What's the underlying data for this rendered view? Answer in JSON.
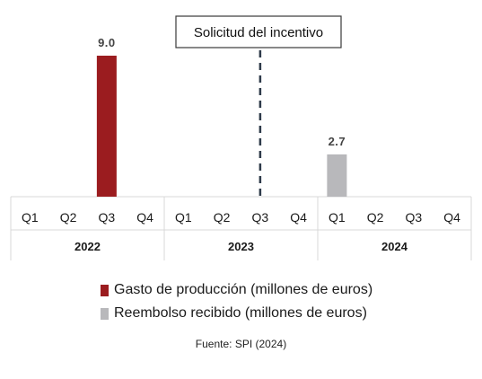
{
  "chart_data": {
    "type": "bar",
    "categories": [
      "Q1",
      "Q2",
      "Q3",
      "Q4",
      "Q1",
      "Q2",
      "Q3",
      "Q4",
      "Q1",
      "Q2",
      "Q3",
      "Q4"
    ],
    "groups": [
      {
        "label": "2022",
        "start": 0,
        "count": 4
      },
      {
        "label": "2023",
        "start": 4,
        "count": 4
      },
      {
        "label": "2024",
        "start": 8,
        "count": 4
      }
    ],
    "series": [
      {
        "name": "Gasto de producción (millones de euros)",
        "color": "#9b1c1f",
        "values": [
          null,
          null,
          9.0,
          null,
          null,
          null,
          null,
          null,
          null,
          null,
          null,
          null
        ]
      },
      {
        "name": "Reembolso recibido (millones de euros)",
        "color": "#b8b8bb",
        "values": [
          null,
          null,
          null,
          null,
          null,
          null,
          null,
          null,
          2.7,
          null,
          null,
          null
        ]
      }
    ],
    "ylim": [
      0,
      9.0
    ],
    "annotation": {
      "text": "Solicitud del incentivo",
      "category_index": 6,
      "style": "dashed-line"
    },
    "legend_position": "bottom",
    "grid": false
  },
  "source": "Fuente: SPI (2024)"
}
